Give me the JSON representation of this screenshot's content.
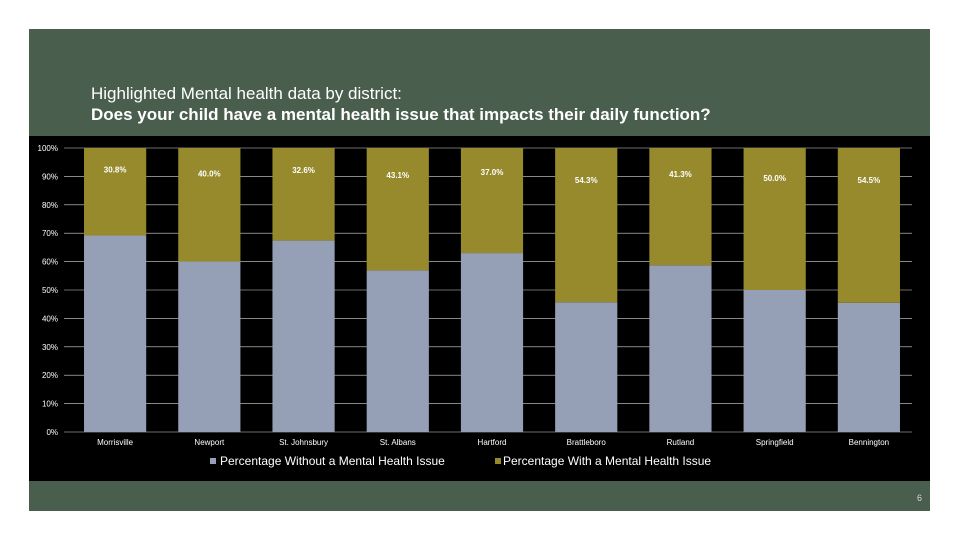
{
  "slide": {
    "title_line1": "Highlighted Mental health data by district:",
    "title_line2": "Does your child have a mental health issue that impacts their daily function?",
    "page_number": "6"
  },
  "colors": {
    "background": "#4a5e4d",
    "plot_background": "#000000",
    "series_without": "#95a0b6",
    "series_with": "#968a2d",
    "grid": "#ffffff",
    "text": "#ffffff"
  },
  "chart_data": {
    "type": "bar",
    "stacked": true,
    "categories": [
      "Morrisville",
      "Newport",
      "St. Johnsbury",
      "St. Albans",
      "Hartford",
      "Brattleboro",
      "Rutland",
      "Springfield",
      "Bennington"
    ],
    "series": [
      {
        "name": "Percentage Without a Mental Health Issue",
        "values": [
          69.2,
          60.0,
          67.4,
          56.9,
          63.0,
          45.7,
          58.7,
          50.0,
          45.5
        ]
      },
      {
        "name": "Percentage With a Mental Health Issue",
        "values": [
          30.8,
          40.0,
          32.6,
          43.1,
          37.0,
          54.3,
          41.3,
          50.0,
          54.5
        ],
        "data_labels": [
          "30.8%",
          "40.0%",
          "32.6%",
          "43.1%",
          "37.0%",
          "54.3%",
          "41.3%",
          "50.0%",
          "54.5%"
        ]
      }
    ],
    "ylim": [
      0,
      100
    ],
    "y_ticks": [
      "0%",
      "10%",
      "20%",
      "30%",
      "40%",
      "50%",
      "60%",
      "70%",
      "80%",
      "90%",
      "100%"
    ],
    "grid": true,
    "legend_position": "bottom"
  }
}
